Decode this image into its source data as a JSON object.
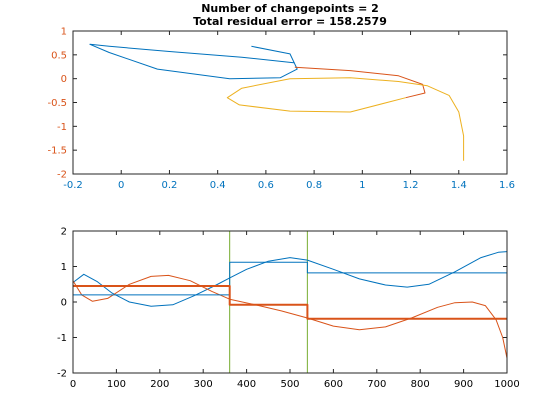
{
  "figure": {
    "title_line1": "Number of changepoints = 2",
    "title_line2": "Total residual error = 158.2579"
  },
  "colors": {
    "blue": "#0072BD",
    "orange": "#D95319",
    "yellow": "#EDB120",
    "olive": "#77AC30",
    "axis": "#262626",
    "y_tick_top": "#D95319"
  },
  "chart_data": [
    {
      "type": "line",
      "title": "",
      "xlim": [
        -0.2,
        1.6
      ],
      "ylim": [
        -2,
        1
      ],
      "x_ticks": [
        "-0.2",
        "0",
        "0.2",
        "0.4",
        "0.6",
        "0.8",
        "1",
        "1.2",
        "1.4",
        "1.6"
      ],
      "y_ticks": [
        "1",
        "0.5",
        "0",
        "-0.5",
        "-1",
        "-1.5",
        "-2"
      ],
      "grid": false,
      "series": [
        {
          "color": "blue",
          "x": [
            0.54,
            0.7,
            0.73,
            0.66,
            0.45,
            0.15,
            -0.05,
            -0.13,
            -0.05,
            0.2,
            0.5,
            0.72
          ],
          "y": [
            0.68,
            0.52,
            0.2,
            0.02,
            0.0,
            0.2,
            0.55,
            0.72,
            0.68,
            0.57,
            0.45,
            0.33
          ]
        },
        {
          "color": "orange",
          "x": [
            0.72,
            0.95,
            1.15,
            1.25,
            1.26,
            1.18
          ],
          "y": [
            0.24,
            0.17,
            0.06,
            -0.12,
            -0.3,
            -0.4
          ]
        },
        {
          "color": "yellow",
          "x": [
            1.18,
            0.95,
            0.7,
            0.49,
            0.44,
            0.5,
            0.7,
            0.95,
            1.15,
            1.27,
            1.36,
            1.4,
            1.42,
            1.42
          ],
          "y": [
            -0.4,
            -0.7,
            -0.68,
            -0.55,
            -0.4,
            -0.2,
            0.0,
            0.02,
            -0.06,
            -0.15,
            -0.35,
            -0.7,
            -1.2,
            -1.72
          ]
        }
      ]
    },
    {
      "type": "line",
      "title": "",
      "xlim": [
        0,
        1000
      ],
      "ylim": [
        -2,
        2
      ],
      "x_ticks": [
        "0",
        "100",
        "200",
        "300",
        "400",
        "500",
        "600",
        "700",
        "800",
        "900",
        "1000"
      ],
      "y_ticks": [
        "2",
        "1",
        "0",
        "-1",
        "-2"
      ],
      "grid": false,
      "changepoints": [
        361,
        540
      ],
      "series": [
        {
          "color": "blue",
          "x": [
            0,
            25,
            55,
            90,
            130,
            180,
            230,
            280,
            330,
            361,
            400,
            450,
            500,
            540,
            600,
            660,
            720,
            770,
            820,
            880,
            940,
            980,
            1000
          ],
          "y": [
            0.55,
            0.78,
            0.58,
            0.25,
            0.0,
            -0.12,
            -0.08,
            0.18,
            0.48,
            0.68,
            0.92,
            1.15,
            1.25,
            1.18,
            0.92,
            0.65,
            0.48,
            0.42,
            0.5,
            0.85,
            1.25,
            1.4,
            1.42
          ]
        },
        {
          "color": "orange",
          "x": [
            0,
            20,
            45,
            80,
            130,
            180,
            220,
            270,
            320,
            361,
            420,
            480,
            540,
            600,
            660,
            720,
            780,
            840,
            880,
            920,
            950,
            975,
            990,
            1000
          ],
          "y": [
            0.6,
            0.2,
            0.02,
            0.1,
            0.5,
            0.72,
            0.75,
            0.6,
            0.3,
            0.08,
            -0.08,
            -0.25,
            -0.45,
            -0.68,
            -0.78,
            -0.7,
            -0.45,
            -0.15,
            -0.02,
            0.0,
            -0.1,
            -0.5,
            -1.0,
            -1.58
          ]
        },
        {
          "color": "blue",
          "steps": true,
          "x": [
            0,
            361,
            361,
            540,
            540,
            1000
          ],
          "y": [
            0.2,
            0.2,
            1.12,
            1.12,
            0.82,
            0.82
          ]
        },
        {
          "color": "orange",
          "steps": true,
          "x": [
            0,
            361,
            361,
            540,
            540,
            1000
          ],
          "y": [
            0.45,
            0.45,
            -0.08,
            -0.08,
            -0.47,
            -0.47
          ]
        }
      ]
    }
  ]
}
